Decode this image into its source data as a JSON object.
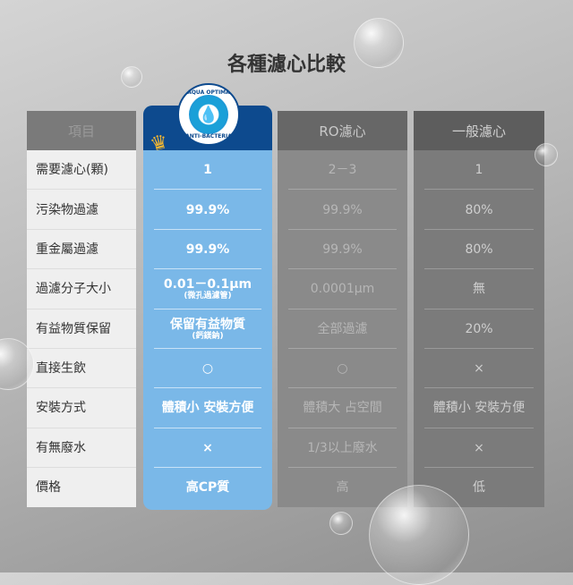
{
  "title": "各種濾心比較",
  "logo": {
    "top_text": "AQUA OPTIMA",
    "bottom_text": "ANTI-BACTERIA"
  },
  "columns": [
    {
      "header": "項目",
      "cells": [
        "需要濾心(顆)",
        "污染物過濾",
        "重金屬過濾",
        "過濾分子大小",
        "有益物質保留",
        "直接生飲",
        "安裝方式",
        "有無廢水",
        "價格"
      ]
    },
    {
      "header": "",
      "cells": [
        "1",
        "99.9%",
        "99.9%",
        "0.01－0.1μm",
        "保留有益物質",
        "○",
        "體積小 安裝方便",
        "×",
        "高CP質"
      ],
      "notes": {
        "3": "(微孔過濾管)",
        "4": "(鈣鎂鈉)"
      }
    },
    {
      "header": "RO濾心",
      "cells": [
        "2－3",
        "99.9%",
        "99.9%",
        "0.0001μm",
        "全部過濾",
        "○",
        "體積大 占空間",
        "1/3以上廢水",
        "高"
      ]
    },
    {
      "header": "一般濾心",
      "cells": [
        "1",
        "80%",
        "80%",
        "無",
        "20%",
        "×",
        "體積小 安裝方便",
        "×",
        "低"
      ]
    }
  ],
  "colors": {
    "accent_header": "#0d4a8e",
    "accent_body": "#7ab8e8"
  }
}
